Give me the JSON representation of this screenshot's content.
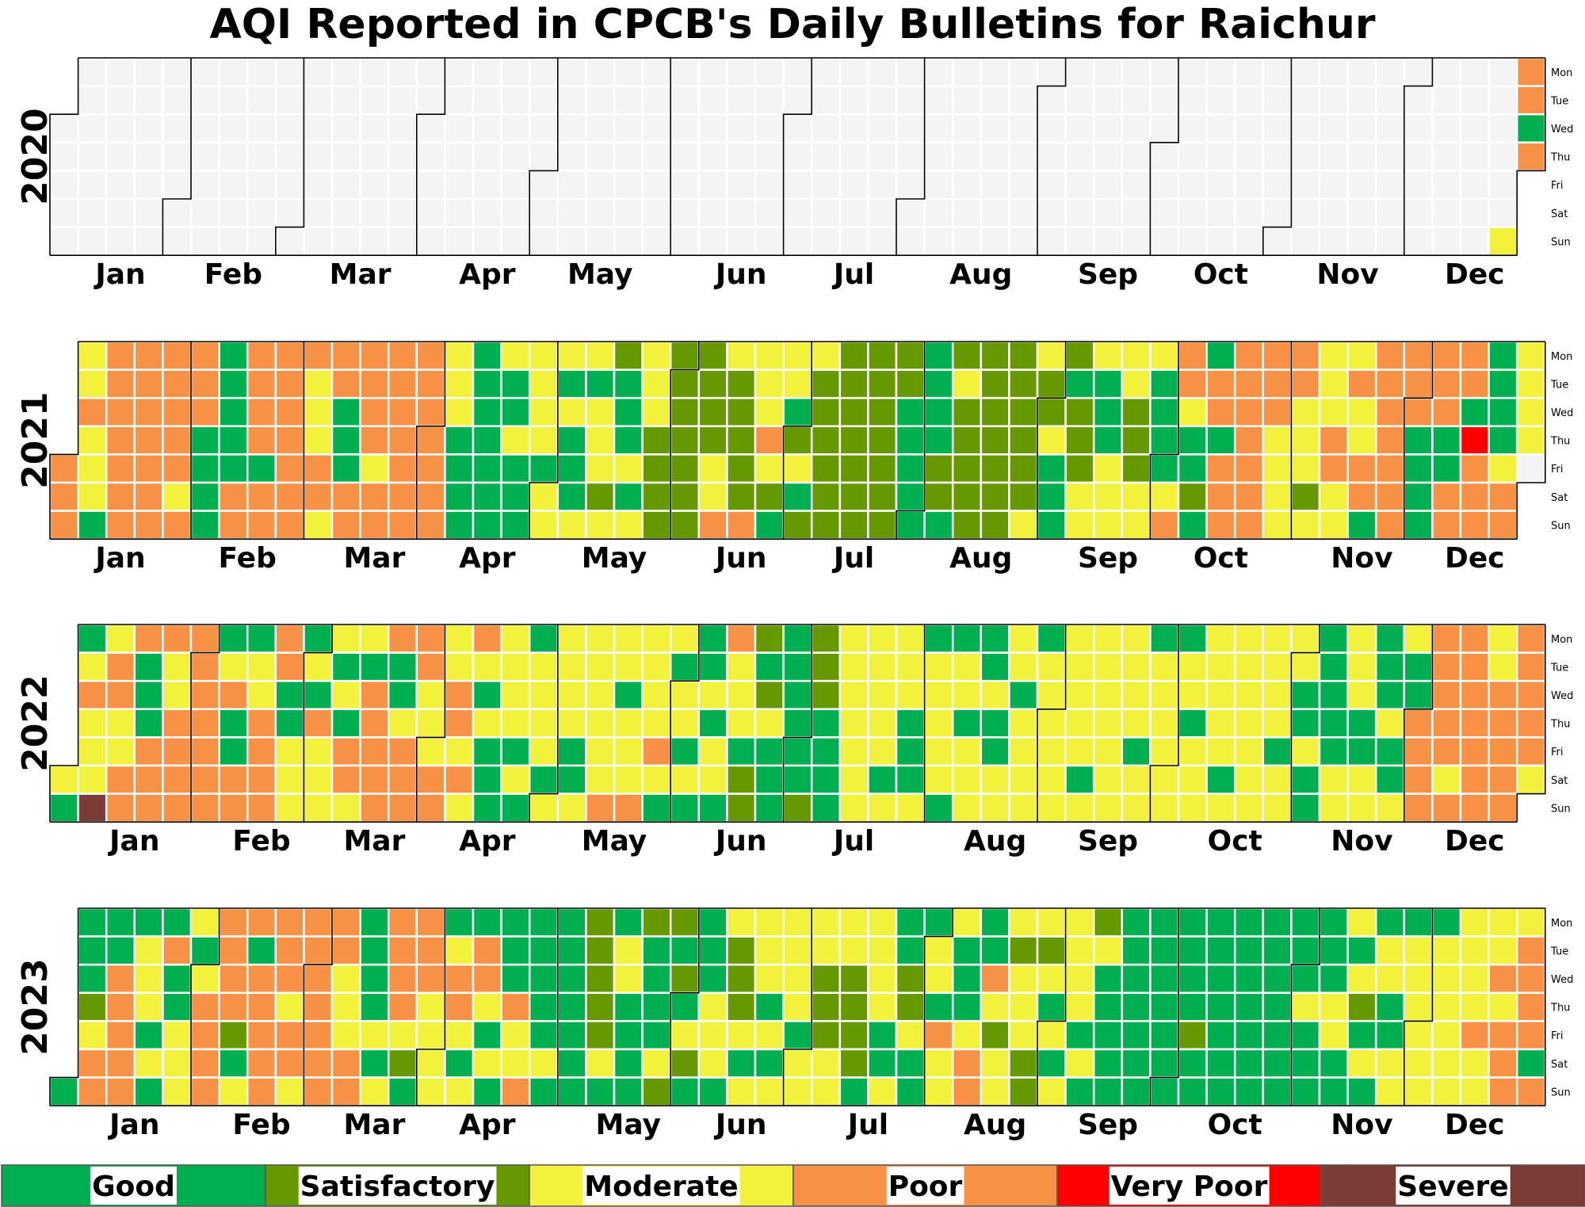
{
  "chart_data": {
    "type": "heatmap",
    "title": "AQI Reported in CPCB's Daily Bulletins for Raichur",
    "months": [
      "Jan",
      "Feb",
      "Mar",
      "Apr",
      "May",
      "Jun",
      "Jul",
      "Aug",
      "Sep",
      "Oct",
      "Nov",
      "Dec"
    ],
    "weekdays": [
      "Mon",
      "Tue",
      "Wed",
      "Thu",
      "Fri",
      "Sat",
      "Sun"
    ],
    "categories": [
      "Good",
      "Satisfactory",
      "Moderate",
      "Poor",
      "Very Poor",
      "Severe"
    ],
    "colors": {
      "G": "#00b050",
      "S": "#669900",
      "M": "#f2f23c",
      "P": "#f79145",
      "V": "#ff0000",
      "X": "#7b3b37",
      "N": "#f4f4f4"
    },
    "legend_colors": [
      "#00b050",
      "#669900",
      "#f2f23c",
      "#f79145",
      "#ff0000",
      "#7b3b37"
    ],
    "code_key": "Letters in 'days' are categories in date order from 1 Jan: G=Good, S=Satisfactory, M=Moderate, P=Poor, V=Very Poor, X=Severe, N=no data",
    "years": [
      {
        "year": "2020",
        "days": "NNNNNNNNNNNNNNNNNNNNNNNNNNNNNNNNNNNNNNNNNNNNNNNNNNNNNNNNNNNNNNNNNNNNNNNNNNNNNNNNNNNNNNNNNNNNNNNNNNNNNNNNNNNNNNNNNNNNNNNNNNNNNNNNNNNNNNNNNNNNNNNNNNNNNNNNNNNNNNNNNNNNNNNNNNNNNNNNNNNNNNNNNNNNNNNNNNNNNNNNNNNNNNNNNNNNNNNNNNNNNNNNNNNNNNNNNNNNNNNNNNNNNNNNNNNNNNNNNNNNNNNNNNNNNNNNNNNNNNNNNNNNNNNNNNNNNNNNNNNNNNNNNNNNNNNNNNNNNNNNNNNNNNNNNNNNNNNNNNNNNNNNNNNNNNNNNNNNNNNNNMPPGPGMPPPPPG"
      },
      {
        "year": "2021",
        "days": "PPPMMPMMMGPPPPPPPPPPPPPPPPPPPMPPPPGGGGGGGGGPPPPPPGPPPPPPPPPPMMMPPMPPGGGPPPPPPMPPPPPPPPPPPPPPPPMMMGGGGGGGGGGGMGGMGGGMMMMGMMMGMGGGMMGMMMSMSGGGMGMMMMSSSSSSSSSSSSSSSMMPMSSSSSPMMMPMSGMMGSMGSMSSSSSSSSSSSSSSSSSSSSSSGGGGGGGGGSSGSMSSSSSSSSSSSSSSSSSSMMSSMGGGSGSSSMMMGGGMMMMMSSSMMMGGGGMPPPMGGSGGPPGPPPPPPPPPPPPPMMMMPPMMMSMMMMPPMMMPMMPPGPPPPPPPPPPGGGGPPPGGPPPPGVPPPGGGGMPPMMMM"
      },
      {
        "year": "2022",
        "days": "MGGMPMMMXMPPMMPPPGGGPPPPMMPPPPPPPPPPPGMPGGPPGMMPPPPPPGGMMMGMGPMMMMGMGPPMMGPPPPPPGGMPPPPPMMMPPMMPPMPMPMGMGGGMMMMGMGGMMMMGMMMMMGGMMMMMMMPMMGMMMPMMMMPMGMGMMGMGGGMGMMGPMMMGSSSGSMGGGGGGGGGSSSSGGGGMMMMMMMMMMMMGMMMMGGGMGMMMMMGGMMGMMMGGMGGMMMMGMMMMGMMMMMMMMMMMGMMMMMMMMMMMMGMMGMMMMMMGMMGMMMMMMMMGMMMMMMMMMMMMGMMMMGGMGGGGGGGMMMMMGGMMGGGMGGMMGGPPPPPPPPPMPPPPPPPPMMPPPPPPPPPPMPPPPPPPMMMPPPPGGPSPPPSMPPGGGGGSSSSS"
      },
      {
        "year": "2023",
        "days": "GGGGSMPPGGPPPPPGMMMGMGGPGGMMMMGMPPPPPPPPSGMPGPPPPPPPPMPPMPPPPPPPPPMMMPPGGGGMGMPPPPMSGPPPMMMMGMPPMGMGPPMGMGGGGPMMPGGGGGMGGGGGGGGSSSSSMGGMMGGGGSGGGGMSSGSGMSGGGGMMMGMSSSMGMMMMGMGMMMMMGMMMMSSSMMMMSSSSGMMMMGGMGGSSMGGGMMGPMMMGGGMPPGGPMSMMMSMMMSSMSMGMGMMMMMGMGSMGGGGGGGGGGGGGGGGGGGGGGGSGGGGGGGGGGGGGGGGGGGGGGGGGGMGGGGGGMMGGMGMSGMGGMMGGMMGMMMMMMGMMMMMMMMMMPMMMMPMPPPMPPPPGPMMMPPMPPGGPPVPPPMMMPPPPMMPPPGGGMPPMPPMMMMPMPMMMMPMMMMMPPPMPMMMMMMPPPPMMMMMMMMMPPMPMMMMMMPPPPPMMMMMMPPPMMGN"
      }
    ]
  }
}
